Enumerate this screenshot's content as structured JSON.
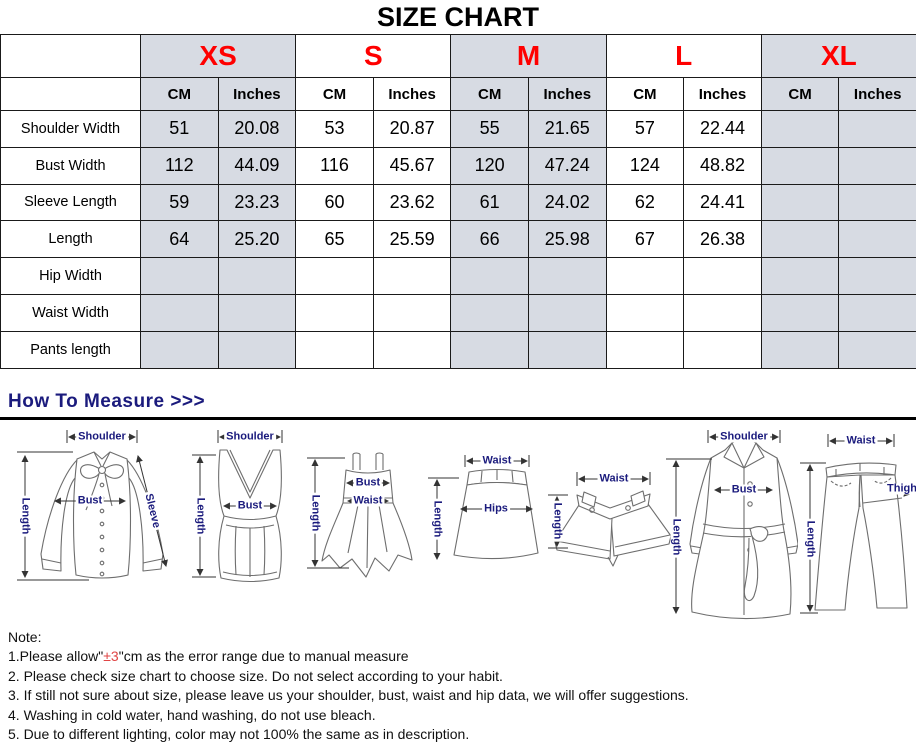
{
  "title": "SIZE CHART",
  "table": {
    "sizes": [
      {
        "label": "XS",
        "shaded": true
      },
      {
        "label": "S",
        "shaded": false
      },
      {
        "label": "M",
        "shaded": true
      },
      {
        "label": "L",
        "shaded": false
      },
      {
        "label": "XL",
        "shaded": true
      }
    ],
    "unit_headers": [
      "CM",
      "Inches"
    ],
    "rows": [
      {
        "label": "Shoulder Width",
        "values": [
          "51",
          "20.08",
          "53",
          "20.87",
          "55",
          "21.65",
          "57",
          "22.44",
          "",
          ""
        ]
      },
      {
        "label": "Bust Width",
        "values": [
          "112",
          "44.09",
          "116",
          "45.67",
          "120",
          "47.24",
          "124",
          "48.82",
          "",
          ""
        ]
      },
      {
        "label": "Sleeve Length",
        "values": [
          "59",
          "23.23",
          "60",
          "23.62",
          "61",
          "24.02",
          "62",
          "24.41",
          "",
          ""
        ]
      },
      {
        "label": "Length",
        "values": [
          "64",
          "25.20",
          "65",
          "25.59",
          "66",
          "25.98",
          "67",
          "26.38",
          "",
          ""
        ]
      },
      {
        "label": "Hip Width",
        "values": [
          "",
          "",
          "",
          "",
          "",
          "",
          "",
          "",
          "",
          ""
        ]
      },
      {
        "label": "Waist Width",
        "values": [
          "",
          "",
          "",
          "",
          "",
          "",
          "",
          "",
          "",
          ""
        ]
      },
      {
        "label": "Pants length",
        "values": [
          "",
          "",
          "",
          "",
          "",
          "",
          "",
          "",
          "",
          ""
        ]
      }
    ]
  },
  "measure": {
    "heading": "How To Measure >>>"
  },
  "figures": [
    {
      "name": "blouse",
      "labels": {
        "shoulder": "Shoulder",
        "length": "Length",
        "bust": "Bust",
        "sleeve": "Sleeve"
      }
    },
    {
      "name": "tank-top",
      "labels": {
        "shoulder": "Shoulder",
        "length": "Length",
        "bust": "Bust"
      }
    },
    {
      "name": "dress",
      "labels": {
        "length": "Length",
        "bust": "Bust",
        "waist": "Waist"
      }
    },
    {
      "name": "skirt",
      "labels": {
        "waist": "Waist",
        "length": "Length",
        "hips": "Hips"
      }
    },
    {
      "name": "shorts",
      "labels": {
        "waist": "Waist",
        "length": "Length"
      }
    },
    {
      "name": "coat",
      "labels": {
        "shoulder": "Shoulder",
        "length": "Length",
        "bust": "Bust"
      }
    },
    {
      "name": "pants",
      "labels": {
        "waist": "Waist",
        "length": "Length",
        "thigh": "Thigh"
      }
    }
  ],
  "notes": {
    "heading": "Note:",
    "line1": {
      "prefix": "1.Please allow\"",
      "highlight": "±3",
      "suffix": "\"cm as the error range due to manual measure"
    },
    "lines": [
      "2. Please check size chart to choose size. Do not select according to your habit.",
      "3. If still not sure about size, please leave us your shoulder, bust, waist and hip data, we will offer suggestions.",
      "4. Washing in cold water, hand washing, do not use bleach.",
      "5. Due to different lighting, color may not 100% the same as in description."
    ]
  },
  "colors": {
    "size_label_red": "#ff0000",
    "note_red": "#e04545",
    "shaded_cell": "#d7dbe3",
    "navy_label": "#1b1b7d",
    "divider_black": "#000000"
  }
}
